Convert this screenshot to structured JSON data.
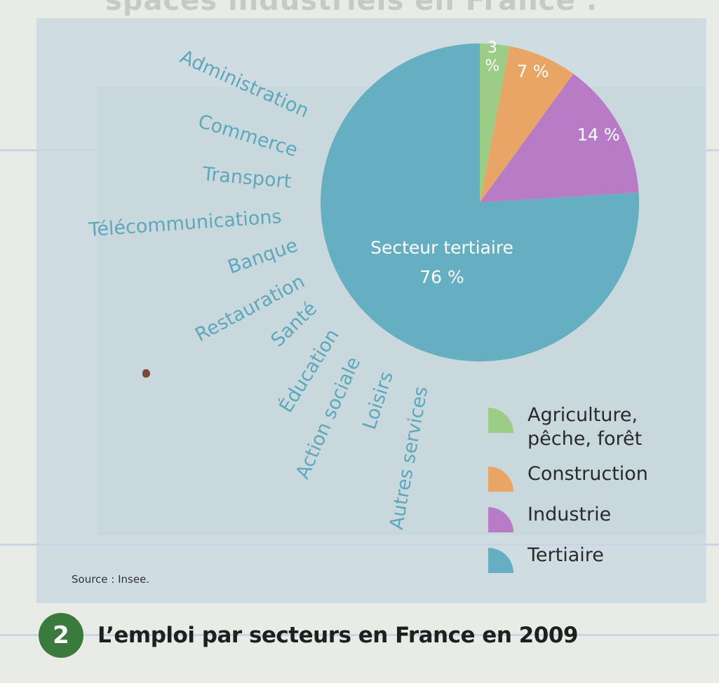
{
  "page": {
    "faded_header": "spaces industriels en France :"
  },
  "services": [
    "Administration",
    "Commerce",
    "Transport",
    "Télécommunications",
    "Banque",
    "Restauration",
    "Santé",
    "Éducation",
    "Action sociale",
    "Loisirs",
    "Autres services"
  ],
  "legend": {
    "items": [
      {
        "label": "Agriculture,\npêche, forêt",
        "color": "#9ccc86"
      },
      {
        "label": "Construction",
        "color": "#e9a565"
      },
      {
        "label": "Industrie",
        "color": "#b77cc5"
      },
      {
        "label": "Tertiaire",
        "color": "#66afc2"
      }
    ]
  },
  "source": "Source : Insee.",
  "caption": {
    "number": "2",
    "title": "L’emploi par secteurs en France en 2009"
  },
  "chart_data": {
    "type": "pie",
    "title": "L’emploi par secteurs en France en 2009",
    "slices": [
      {
        "name": "Agriculture, pêche, forêt",
        "value": 3,
        "label": "3 %",
        "color": "#9ccc86"
      },
      {
        "name": "Construction",
        "value": 7,
        "label": "7 %",
        "color": "#e9a565"
      },
      {
        "name": "Industrie",
        "value": 14,
        "label": "14 %",
        "color": "#b77cc5"
      },
      {
        "name": "Tertiaire",
        "value": 76,
        "label": "Secteur tertiaire\n76 %",
        "color": "#66afc2"
      }
    ],
    "start": "top, clockwise"
  }
}
